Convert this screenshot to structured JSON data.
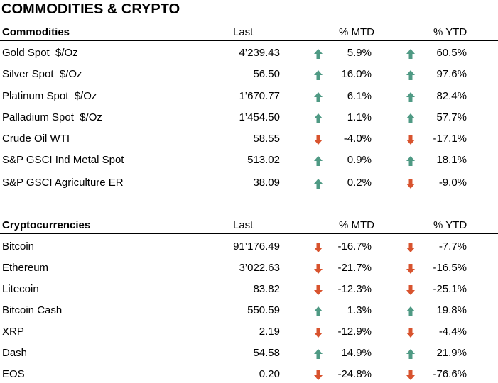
{
  "title": "COMMODITIES & CRYPTO",
  "sections": [
    {
      "header": [
        "Commodities",
        "Last",
        "% MTD",
        "% YTD"
      ],
      "rows": [
        [
          "Gold Spot  $/Oz",
          "4’239.43",
          "5.9%",
          "60.5%"
        ],
        [
          "Silver Spot  $/Oz",
          "56.50",
          "16.0%",
          "97.6%"
        ],
        [
          "Platinum Spot  $/Oz",
          "1’670.77",
          "6.1%",
          "82.4%"
        ],
        [
          "Palladium Spot  $/Oz",
          "1’454.50",
          "1.1%",
          "57.7%"
        ],
        [
          "Crude Oil WTI",
          "58.55",
          "-4.0%",
          "-17.1%"
        ],
        [
          "S&P GSCI Ind Metal Spot",
          "513.02",
          "0.9%",
          "18.1%"
        ],
        [
          "S&P GSCI Agriculture ER",
          "38.09",
          "0.2%",
          "-9.0%"
        ]
      ]
    },
    {
      "header": [
        "Cryptocurrencies",
        "Last",
        "% MTD",
        "% YTD"
      ],
      "rows": [
        [
          "Bitcoin",
          "91’176.49",
          "-16.7%",
          "-7.7%"
        ],
        [
          "Ethereum",
          "3’022.63",
          "-21.7%",
          "-16.5%"
        ],
        [
          "Litecoin",
          "83.82",
          "-12.3%",
          "-25.1%"
        ],
        [
          "Bitcoin Cash",
          "550.59",
          "1.3%",
          "19.8%"
        ],
        [
          "XRP",
          "2.19",
          "-12.9%",
          "-4.4%"
        ],
        [
          "Dash",
          "54.58",
          "14.9%",
          "21.9%"
        ],
        [
          "EOS",
          "0.20",
          "-24.8%",
          "-76.6%"
        ]
      ]
    }
  ]
}
